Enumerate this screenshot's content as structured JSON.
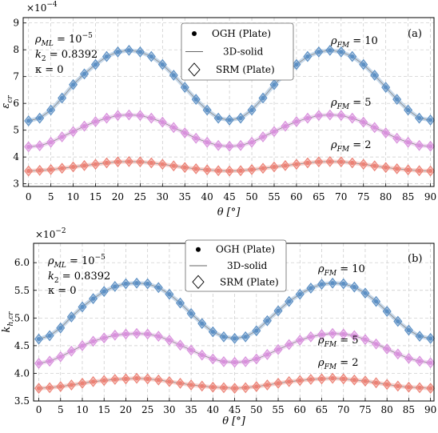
{
  "figure": {
    "x_values": [
      0,
      2.5,
      5,
      7.5,
      10,
      12.5,
      15,
      17.5,
      20,
      22.5,
      25,
      27.5,
      30,
      32.5,
      35,
      37.5,
      40,
      42.5,
      45,
      47.5,
      50,
      52.5,
      55,
      57.5,
      60,
      62.5,
      65,
      67.5,
      70,
      72.5,
      75,
      77.5,
      80,
      82.5,
      85,
      87.5,
      90
    ],
    "x_ticks": [
      "0",
      "5",
      "10",
      "15",
      "20",
      "25",
      "30",
      "35",
      "40",
      "45",
      "50",
      "55",
      "60",
      "65",
      "70",
      "75",
      "80",
      "85",
      "90"
    ],
    "legend": {
      "ogh": "OGH (Plate)",
      "solid": "3D-solid",
      "srm": "SRM (Plate)"
    },
    "params": {
      "rho_ml": "ρ",
      "rho_ml_sub": "ML",
      "rho_ml_val": " = 10",
      "rho_ml_exp": "−5",
      "k2": "k",
      "k2_sub": "2",
      "k2_val": " = 0.8392",
      "kappa": "κ = 0"
    },
    "series_labels": {
      "rho": "ρ",
      "sub": "FM",
      "v10": " = 10",
      "v5": " = 5",
      "v2": " = 2"
    },
    "colors": {
      "s10": "#5b8fc4",
      "s5": "#d88fdc",
      "s2": "#ec8074"
    }
  },
  "panels": [
    {
      "label": "(a)",
      "ylabel_main": "ε",
      "ylabel_sub": "cr",
      "xlabel": "θ [°]",
      "scale_base": "×10",
      "scale_exp": "−4",
      "ylim": [
        2.9,
        9.2
      ],
      "y_ticks": [
        "3",
        "4",
        "5",
        "6",
        "7",
        "8",
        "9"
      ],
      "series": [
        {
          "rho_fm": 10,
          "values": [
            5.35,
            5.45,
            5.75,
            6.2,
            6.7,
            7.1,
            7.45,
            7.75,
            7.92,
            7.98,
            7.92,
            7.75,
            7.45,
            7.05,
            6.6,
            6.15,
            5.75,
            5.45,
            5.38,
            5.45,
            5.75,
            6.2,
            6.7,
            7.1,
            7.45,
            7.75,
            7.92,
            7.98,
            7.92,
            7.75,
            7.45,
            7.05,
            6.6,
            6.15,
            5.75,
            5.45,
            5.38
          ]
        },
        {
          "rho_fm": 5,
          "values": [
            4.38,
            4.42,
            4.55,
            4.75,
            4.95,
            5.15,
            5.32,
            5.45,
            5.55,
            5.57,
            5.55,
            5.45,
            5.3,
            5.1,
            4.9,
            4.7,
            4.55,
            4.43,
            4.4,
            4.43,
            4.55,
            4.75,
            4.95,
            5.15,
            5.32,
            5.45,
            5.55,
            5.57,
            5.55,
            5.45,
            5.3,
            5.1,
            4.9,
            4.7,
            4.55,
            4.43,
            4.4
          ]
        },
        {
          "rho_fm": 2,
          "values": [
            3.48,
            3.5,
            3.53,
            3.58,
            3.63,
            3.68,
            3.73,
            3.78,
            3.82,
            3.83,
            3.82,
            3.78,
            3.73,
            3.67,
            3.61,
            3.56,
            3.52,
            3.49,
            3.48,
            3.49,
            3.53,
            3.58,
            3.63,
            3.68,
            3.73,
            3.78,
            3.82,
            3.83,
            3.82,
            3.78,
            3.73,
            3.67,
            3.61,
            3.56,
            3.52,
            3.49,
            3.48
          ]
        }
      ]
    },
    {
      "label": "(b)",
      "ylabel_main": "k",
      "ylabel_sub": "h,cr",
      "xlabel": "θ [°]",
      "scale_base": "×10",
      "scale_exp": "−2",
      "ylim": [
        3.5,
        6.35
      ],
      "y_ticks": [
        "3.5",
        "4.0",
        "4.5",
        "5.0",
        "5.5",
        "6.0"
      ],
      "series": [
        {
          "rho_fm": 10,
          "values": [
            4.62,
            4.68,
            4.82,
            5.02,
            5.2,
            5.35,
            5.48,
            5.57,
            5.62,
            5.63,
            5.62,
            5.55,
            5.43,
            5.27,
            5.08,
            4.9,
            4.75,
            4.66,
            4.63,
            4.66,
            4.77,
            4.95,
            5.13,
            5.3,
            5.43,
            5.54,
            5.61,
            5.63,
            5.62,
            5.56,
            5.45,
            5.3,
            5.12,
            4.94,
            4.78,
            4.67,
            4.63
          ]
        },
        {
          "rho_fm": 5,
          "values": [
            4.18,
            4.22,
            4.3,
            4.4,
            4.5,
            4.58,
            4.64,
            4.69,
            4.71,
            4.72,
            4.71,
            4.67,
            4.6,
            4.51,
            4.42,
            4.33,
            4.26,
            4.21,
            4.2,
            4.21,
            4.26,
            4.34,
            4.43,
            4.52,
            4.6,
            4.66,
            4.7,
            4.72,
            4.71,
            4.68,
            4.61,
            4.53,
            4.44,
            4.35,
            4.27,
            4.22,
            4.19
          ]
        },
        {
          "rho_fm": 2,
          "values": [
            3.73,
            3.74,
            3.76,
            3.79,
            3.82,
            3.85,
            3.87,
            3.89,
            3.9,
            3.91,
            3.9,
            3.88,
            3.85,
            3.82,
            3.79,
            3.77,
            3.75,
            3.74,
            3.73,
            3.74,
            3.76,
            3.79,
            3.82,
            3.85,
            3.87,
            3.89,
            3.9,
            3.91,
            3.9,
            3.88,
            3.86,
            3.83,
            3.8,
            3.77,
            3.75,
            3.74,
            3.73
          ]
        }
      ]
    }
  ]
}
